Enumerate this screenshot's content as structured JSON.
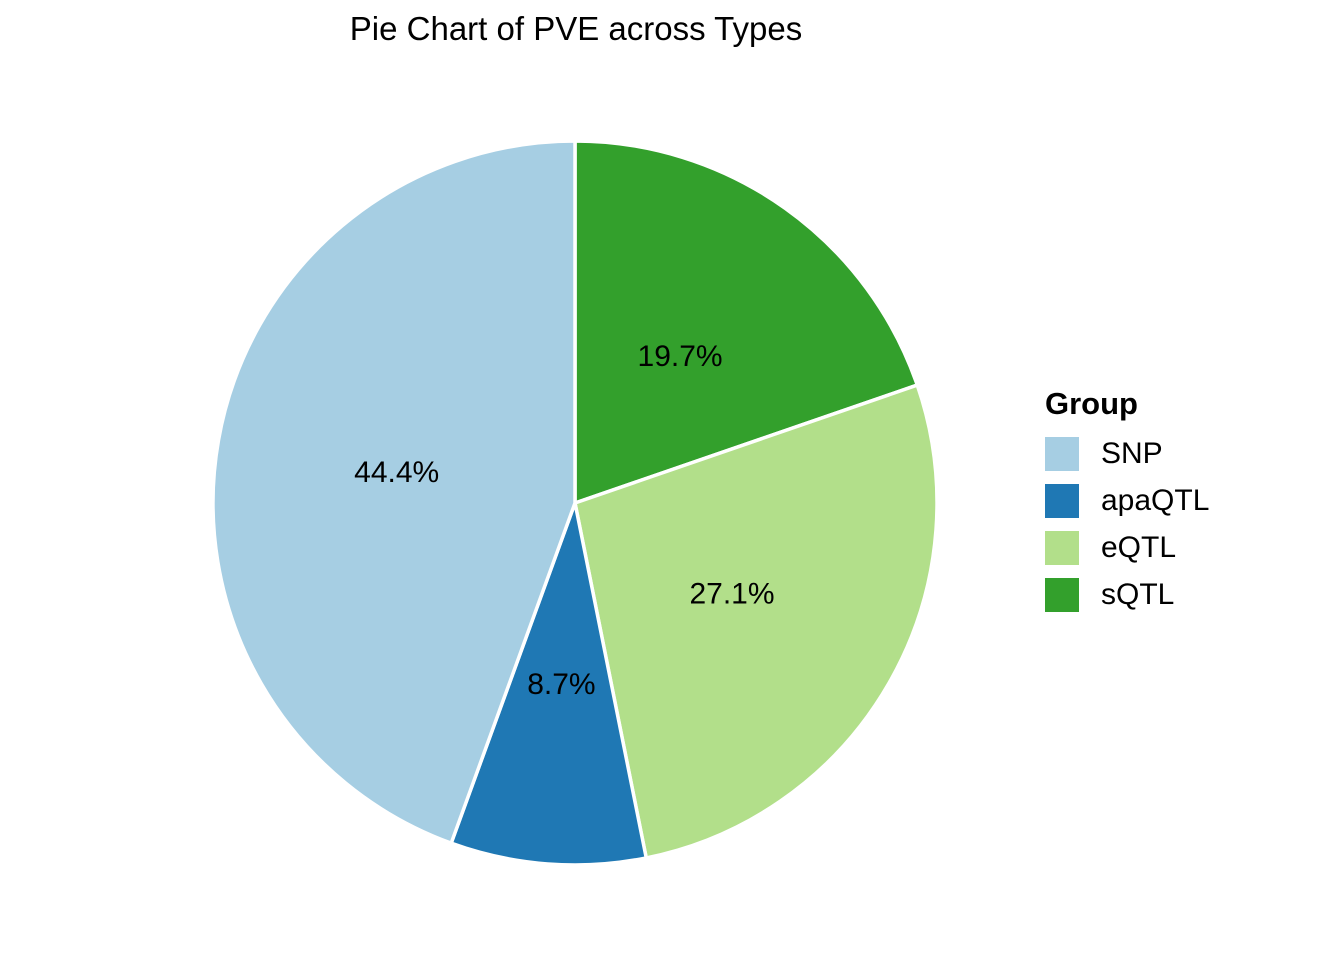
{
  "chart_data": {
    "type": "pie",
    "title": "Pie Chart of PVE across Types",
    "unit": "%",
    "background": "#FFFFFF",
    "slice_border_color": "#FFFFFF",
    "direction": "clockwise",
    "start_angle_deg_from_12_oclock": 0,
    "label_position_fraction_of_radius": 0.5,
    "legend_position": "right",
    "slices_clockwise_from_top": [
      {
        "label": "sQTL",
        "value": 19.7,
        "display": "19.7%",
        "color": "#33A02C"
      },
      {
        "label": "eQTL",
        "value": 27.1,
        "display": "27.1%",
        "color": "#B2DF8A"
      },
      {
        "label": "apaQTL",
        "value": 8.7,
        "display": "8.7%",
        "color": "#1F78B4"
      },
      {
        "label": "SNP",
        "value": 44.4,
        "display": "44.4%",
        "color": "#A6CEE3"
      }
    ]
  },
  "legend": {
    "title": "Group",
    "items": [
      {
        "label": "SNP",
        "color": "#A6CEE3"
      },
      {
        "label": "apaQTL",
        "color": "#1F78B4"
      },
      {
        "label": "eQTL",
        "color": "#B2DF8A"
      },
      {
        "label": "sQTL",
        "color": "#33A02C"
      }
    ]
  }
}
